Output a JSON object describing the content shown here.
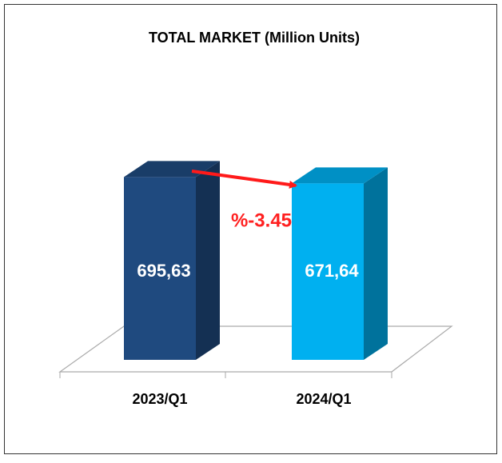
{
  "chart_data": {
    "type": "bar3d",
    "title": "TOTAL MARKET  (Million Units)",
    "categories": [
      "2023/Q1",
      "2024/Q1"
    ],
    "values": [
      695.63,
      671.64
    ],
    "value_labels": [
      "695,63",
      "671,64"
    ],
    "colors": [
      "#1f4a7f",
      "#00b0f0"
    ],
    "annotation": "%-3.45"
  }
}
